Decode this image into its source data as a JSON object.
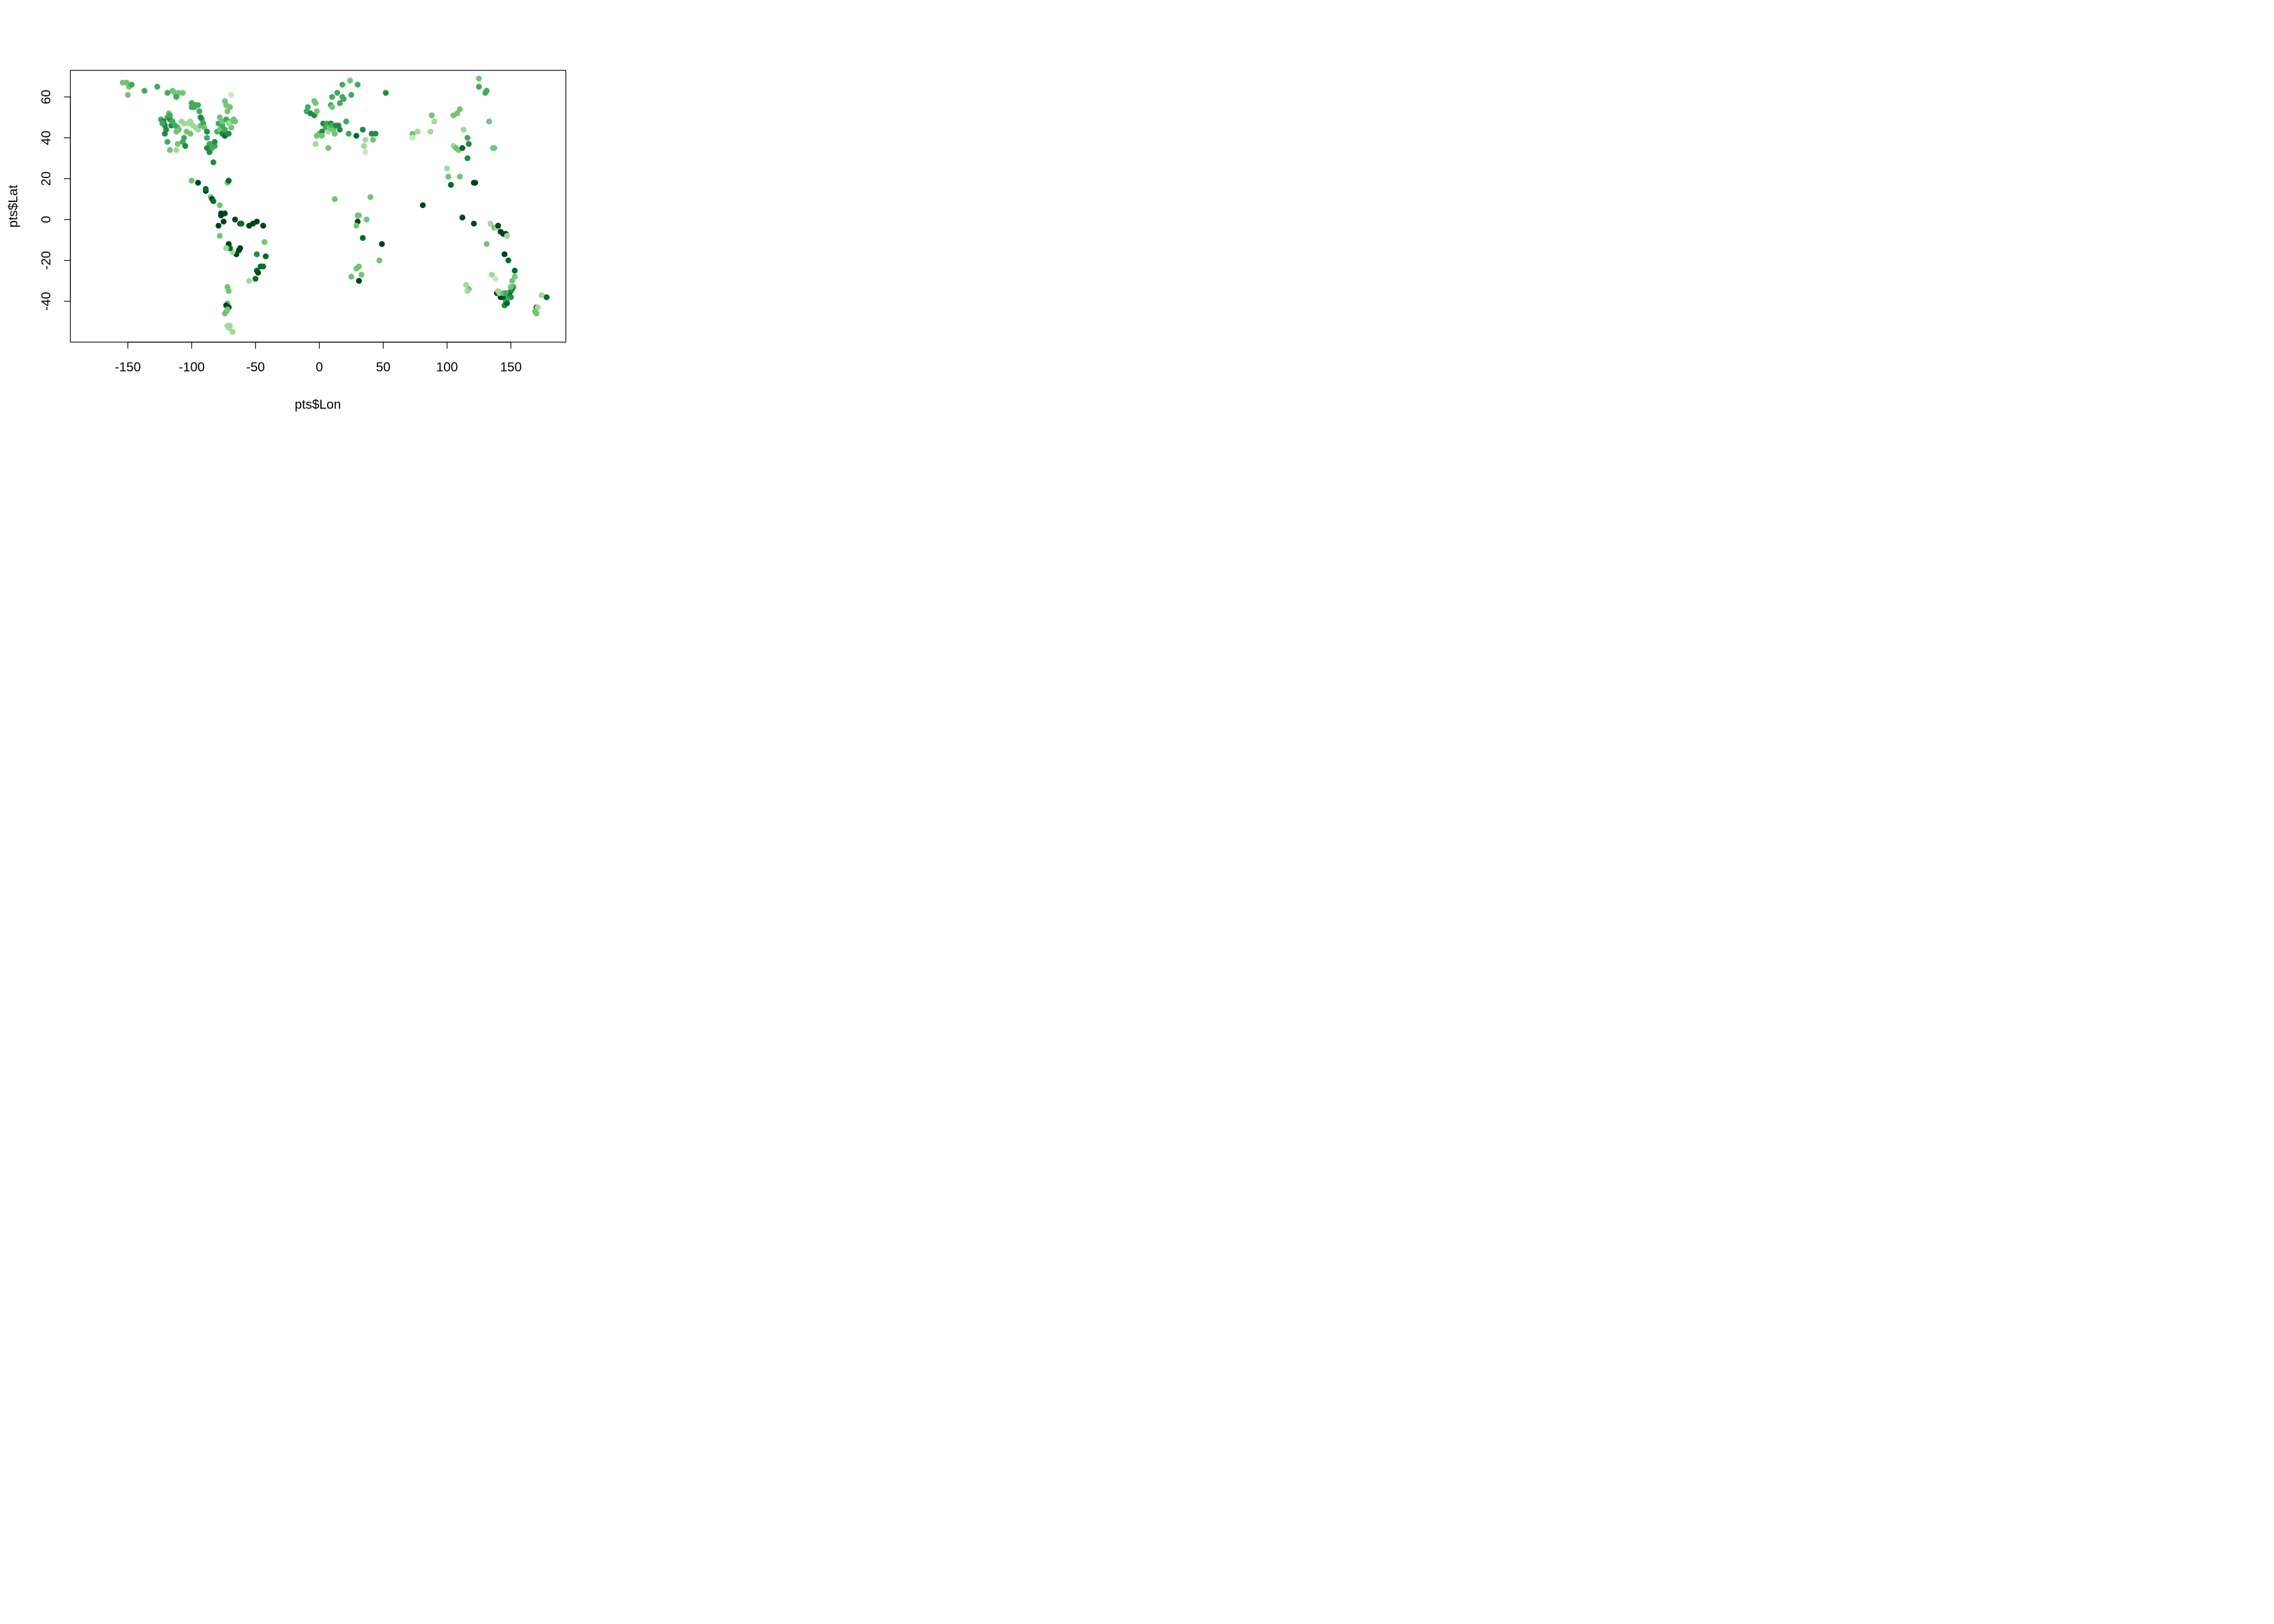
{
  "chart_data": {
    "type": "scatter",
    "title": "",
    "xlabel": "pts$Lon",
    "ylabel": "pts$Lat",
    "xlim": [
      -195,
      193
    ],
    "ylim": [
      -60,
      73
    ],
    "xticks": [
      -150,
      -100,
      -50,
      0,
      50,
      100,
      150
    ],
    "yticks": [
      -40,
      -20,
      0,
      20,
      40,
      60
    ],
    "grid": false,
    "legend": "none",
    "palette": [
      "#e5f5e0",
      "#c7e9c0",
      "#a1d99b",
      "#74c476",
      "#41ab5d",
      "#238b45",
      "#006d2c",
      "#00441b"
    ],
    "points": [
      [
        -154,
        67,
        3
      ],
      [
        -151,
        67,
        3
      ],
      [
        -149,
        65,
        3
      ],
      [
        -147,
        66,
        4
      ],
      [
        -150,
        61,
        3
      ],
      [
        -137,
        63,
        4
      ],
      [
        -127,
        65,
        4
      ],
      [
        -119,
        62,
        4
      ],
      [
        -115,
        63,
        3
      ],
      [
        -113,
        62,
        3
      ],
      [
        -110,
        62,
        3
      ],
      [
        -107,
        62,
        3
      ],
      [
        -112,
        60,
        4
      ],
      [
        -124,
        49,
        4
      ],
      [
        -122,
        48,
        5
      ],
      [
        -121,
        46,
        5
      ],
      [
        -120,
        44,
        5
      ],
      [
        -121,
        42,
        5
      ],
      [
        -123,
        47,
        4
      ],
      [
        -119,
        50,
        4
      ],
      [
        -117,
        49,
        5
      ],
      [
        -116,
        46,
        5
      ],
      [
        -115,
        48,
        4
      ],
      [
        -113,
        46,
        4
      ],
      [
        -111,
        45,
        4
      ],
      [
        -112,
        43,
        3
      ],
      [
        -110,
        44,
        3
      ],
      [
        -118,
        52,
        3
      ],
      [
        -117,
        51,
        4
      ],
      [
        -119,
        38,
        4
      ],
      [
        -117,
        34,
        3
      ],
      [
        -112,
        34,
        2
      ],
      [
        -111,
        37,
        3
      ],
      [
        -107,
        38,
        4
      ],
      [
        -105,
        36,
        5
      ],
      [
        -106,
        40,
        4
      ],
      [
        -101,
        48,
        2
      ],
      [
        -99,
        46,
        2
      ],
      [
        -97,
        45,
        2
      ],
      [
        -95,
        44,
        2
      ],
      [
        -93,
        46,
        3
      ],
      [
        -91,
        47,
        4
      ],
      [
        -92,
        49,
        4
      ],
      [
        -90,
        45,
        3
      ],
      [
        -88,
        43,
        5
      ],
      [
        -88,
        40,
        4
      ],
      [
        -86,
        37,
        4
      ],
      [
        -88,
        35,
        5
      ],
      [
        -86,
        33,
        5
      ],
      [
        -84,
        35,
        4
      ],
      [
        -82,
        36,
        4
      ],
      [
        -82,
        38,
        5
      ],
      [
        -80,
        43,
        4
      ],
      [
        -78,
        44,
        3
      ],
      [
        -76,
        42,
        5
      ],
      [
        -74,
        41,
        6
      ],
      [
        -72,
        42,
        5
      ],
      [
        -71,
        42,
        5
      ],
      [
        -74,
        44,
        4
      ],
      [
        -76,
        46,
        4
      ],
      [
        -79,
        47,
        4
      ],
      [
        -78,
        50,
        3
      ],
      [
        -76,
        48,
        3
      ],
      [
        -73,
        49,
        4
      ],
      [
        -71,
        47,
        3
      ],
      [
        -69,
        48,
        3
      ],
      [
        -67,
        49,
        3
      ],
      [
        -66,
        48,
        3
      ],
      [
        -69,
        45,
        3
      ],
      [
        -71,
        47,
        2
      ],
      [
        -74,
        58,
        3
      ],
      [
        -73,
        56,
        3
      ],
      [
        -72,
        53,
        3
      ],
      [
        -69,
        61,
        1
      ],
      [
        -70,
        55,
        3
      ],
      [
        -100,
        57,
        4
      ],
      [
        -100,
        55,
        4
      ],
      [
        -98,
        55,
        4
      ],
      [
        -97,
        56,
        4
      ],
      [
        -95,
        56,
        4
      ],
      [
        -94,
        53,
        4
      ],
      [
        -93,
        50,
        5
      ],
      [
        -104,
        43,
        3
      ],
      [
        -99,
        46,
        2
      ],
      [
        -101,
        42,
        3
      ],
      [
        -108,
        48,
        2
      ],
      [
        -106,
        47,
        2
      ],
      [
        -103,
        47,
        2
      ],
      [
        -83,
        28,
        5
      ],
      [
        -100,
        19,
        3
      ],
      [
        -95,
        18,
        7
      ],
      [
        -89,
        14,
        7
      ],
      [
        -89,
        15,
        6
      ],
      [
        -85,
        11,
        3
      ],
      [
        -84,
        10,
        7
      ],
      [
        -83,
        9,
        6
      ],
      [
        -78,
        7,
        3
      ],
      [
        -77,
        3,
        7
      ],
      [
        -74,
        3,
        7
      ],
      [
        -77,
        2,
        7
      ],
      [
        -75,
        -1,
        7
      ],
      [
        -79,
        -3,
        7
      ],
      [
        -78,
        -8,
        3
      ],
      [
        -72,
        18,
        3
      ],
      [
        -71,
        19,
        6
      ],
      [
        -66,
        0,
        7
      ],
      [
        -62,
        -2,
        7
      ],
      [
        -61,
        -2,
        6
      ],
      [
        -55,
        -3,
        7
      ],
      [
        -52,
        -2,
        7
      ],
      [
        -49,
        -1,
        7
      ],
      [
        -44,
        -3,
        7
      ],
      [
        -43,
        -11,
        3
      ],
      [
        -49,
        -17,
        5
      ],
      [
        -42,
        -18,
        6
      ],
      [
        -44,
        -23,
        6
      ],
      [
        -46,
        -23,
        6
      ],
      [
        -49,
        -25,
        6
      ],
      [
        -48,
        -26,
        7
      ],
      [
        -50,
        -29,
        6
      ],
      [
        -55,
        -30,
        2
      ],
      [
        -65,
        -17,
        7
      ],
      [
        -63,
        -15,
        7
      ],
      [
        -62,
        -14,
        7
      ],
      [
        -68,
        -16,
        2
      ],
      [
        -71,
        -12,
        7
      ],
      [
        -70,
        -14,
        6
      ],
      [
        -73,
        -14,
        2
      ],
      [
        -72,
        -33,
        3
      ],
      [
        -71,
        -35,
        3
      ],
      [
        -72,
        -41,
        3
      ],
      [
        -73,
        -42,
        7
      ],
      [
        -71,
        -43,
        7
      ],
      [
        -72,
        -44,
        3
      ],
      [
        -73,
        -45,
        3
      ],
      [
        -74,
        -46,
        3
      ],
      [
        -72,
        -52,
        2
      ],
      [
        -70,
        -52,
        2
      ],
      [
        -71,
        -53,
        2
      ],
      [
        -68,
        -55,
        2
      ],
      [
        -10,
        53,
        4
      ],
      [
        -9,
        55,
        4
      ],
      [
        -7,
        52,
        5
      ],
      [
        -4,
        58,
        3
      ],
      [
        -3,
        57,
        3
      ],
      [
        -4,
        51,
        5
      ],
      [
        -2,
        53,
        3
      ],
      [
        0,
        42,
        3
      ],
      [
        -2,
        41,
        3
      ],
      [
        -3,
        37,
        2
      ],
      [
        2,
        43,
        5
      ],
      [
        2,
        41,
        3
      ],
      [
        3,
        47,
        5
      ],
      [
        5,
        45,
        4
      ],
      [
        6,
        47,
        4
      ],
      [
        7,
        43,
        2
      ],
      [
        8,
        45,
        3
      ],
      [
        9,
        47,
        5
      ],
      [
        10,
        46,
        4
      ],
      [
        11,
        44,
        3
      ],
      [
        12,
        42,
        3
      ],
      [
        13,
        46,
        5
      ],
      [
        15,
        46,
        5
      ],
      [
        16,
        44,
        5
      ],
      [
        7,
        35,
        3
      ],
      [
        9,
        56,
        4
      ],
      [
        10,
        60,
        4
      ],
      [
        14,
        62,
        4
      ],
      [
        18,
        60,
        4
      ],
      [
        16,
        57,
        4
      ],
      [
        19,
        59,
        4
      ],
      [
        18,
        66,
        4
      ],
      [
        10,
        55,
        3
      ],
      [
        21,
        48,
        4
      ],
      [
        24,
        68,
        3
      ],
      [
        30,
        66,
        4
      ],
      [
        25,
        61,
        4
      ],
      [
        23,
        42,
        4
      ],
      [
        29,
        41,
        6
      ],
      [
        34,
        44,
        5
      ],
      [
        36,
        39,
        2
      ],
      [
        35,
        36,
        2
      ],
      [
        36,
        33,
        1
      ],
      [
        41,
        42,
        5
      ],
      [
        44,
        42,
        5
      ],
      [
        42,
        39,
        3
      ],
      [
        52,
        62,
        5
      ],
      [
        12,
        10,
        3
      ],
      [
        30,
        2,
        3
      ],
      [
        31,
        2,
        3
      ],
      [
        30,
        -1,
        7
      ],
      [
        29,
        -3,
        3
      ],
      [
        37,
        0,
        3
      ],
      [
        40,
        11,
        3
      ],
      [
        34,
        -9,
        6
      ],
      [
        49,
        -12,
        7
      ],
      [
        47,
        -20,
        3
      ],
      [
        29,
        -24,
        3
      ],
      [
        31,
        -23,
        3
      ],
      [
        33,
        -27,
        3
      ],
      [
        25,
        -28,
        3
      ],
      [
        31,
        -30,
        7
      ],
      [
        73,
        42,
        3
      ],
      [
        77,
        43,
        2
      ],
      [
        73,
        40,
        1
      ],
      [
        87,
        43,
        2
      ],
      [
        88,
        51,
        3
      ],
      [
        90,
        48,
        2
      ],
      [
        81,
        7,
        7
      ],
      [
        100,
        25,
        2
      ],
      [
        101,
        21,
        3
      ],
      [
        110,
        21,
        3
      ],
      [
        103,
        17,
        6
      ],
      [
        105,
        51,
        3
      ],
      [
        108,
        52,
        3
      ],
      [
        110,
        54,
        3
      ],
      [
        113,
        44,
        2
      ],
      [
        105,
        36,
        2
      ],
      [
        107,
        35,
        3
      ],
      [
        109,
        34,
        3
      ],
      [
        112,
        35,
        6
      ],
      [
        116,
        40,
        4
      ],
      [
        117,
        37,
        5
      ],
      [
        116,
        30,
        5
      ],
      [
        112,
        1,
        7
      ],
      [
        121,
        18,
        7
      ],
      [
        122,
        18,
        7
      ],
      [
        121,
        -2,
        7
      ],
      [
        117,
        -34,
        3
      ],
      [
        125,
        69,
        3
      ],
      [
        125,
        65,
        4
      ],
      [
        130,
        62,
        4
      ],
      [
        131,
        63,
        4
      ],
      [
        133,
        48,
        3
      ],
      [
        136,
        35,
        3
      ],
      [
        137,
        35,
        3
      ],
      [
        134,
        -2,
        2
      ],
      [
        137,
        -4,
        3
      ],
      [
        139,
        -4,
        2
      ],
      [
        140,
        -3,
        7
      ],
      [
        142,
        -6,
        7
      ],
      [
        144,
        -7,
        7
      ],
      [
        146,
        -7,
        7
      ],
      [
        147,
        -8,
        2
      ],
      [
        131,
        -12,
        3
      ],
      [
        145,
        -17,
        7
      ],
      [
        148,
        -20,
        6
      ],
      [
        153,
        -25,
        6
      ],
      [
        153,
        -28,
        3
      ],
      [
        151,
        -30,
        3
      ],
      [
        152,
        -33,
        4
      ],
      [
        151,
        -34,
        5
      ],
      [
        150,
        -35,
        5
      ],
      [
        149,
        -37,
        6
      ],
      [
        150,
        -38,
        5
      ],
      [
        147,
        -39,
        4
      ],
      [
        146,
        -40,
        4
      ],
      [
        145,
        -42,
        5
      ],
      [
        147,
        -41,
        6
      ],
      [
        144,
        -38,
        6
      ],
      [
        142,
        -38,
        7
      ],
      [
        139,
        -36,
        7
      ],
      [
        140,
        -35,
        2
      ],
      [
        135,
        -27,
        2
      ],
      [
        138,
        -29,
        1
      ],
      [
        115,
        -32,
        2
      ],
      [
        116,
        -35,
        2
      ],
      [
        141,
        -36,
        2
      ],
      [
        144,
        -36,
        3
      ],
      [
        146,
        -36,
        4
      ],
      [
        150,
        -33,
        3
      ],
      [
        170,
        -43,
        6
      ],
      [
        171,
        -43,
        2
      ],
      [
        169,
        -45,
        3
      ],
      [
        170,
        -46,
        3
      ],
      [
        174,
        -37,
        2
      ],
      [
        178,
        -38,
        6
      ]
    ]
  }
}
